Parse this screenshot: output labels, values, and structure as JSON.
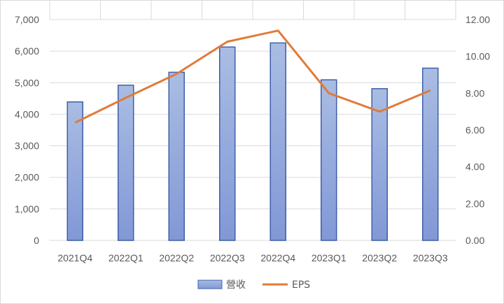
{
  "chart_data": {
    "type": "bar",
    "categories": [
      "2021Q4",
      "2022Q1",
      "2022Q2",
      "2022Q3",
      "2022Q4",
      "2023Q1",
      "2023Q2",
      "2023Q3"
    ],
    "series": [
      {
        "name": "營收",
        "type": "bar",
        "axis": "left",
        "values": [
          4390,
          4920,
          5330,
          6130,
          6260,
          5090,
          4810,
          5460
        ]
      },
      {
        "name": "EPS",
        "type": "line",
        "axis": "right",
        "values": [
          6.4,
          7.75,
          9.05,
          10.8,
          11.4,
          8.0,
          7.0,
          8.15
        ]
      }
    ],
    "y_left": {
      "min": 0,
      "max": 7000,
      "step": 1000,
      "tick_labels": [
        "0",
        "1,000",
        "2,000",
        "3,000",
        "4,000",
        "5,000",
        "6,000",
        "7,000"
      ]
    },
    "y_right": {
      "min": 0,
      "max": 12,
      "step": 2,
      "tick_labels": [
        "0.00",
        "2.00",
        "4.00",
        "6.00",
        "8.00",
        "10.00",
        "12.00"
      ]
    },
    "grid": true,
    "legend": "bottom",
    "colors": {
      "bar_fill_top": "#a9bde3",
      "bar_fill_bottom": "#8298d6",
      "bar_stroke": "#3e5fa8",
      "line": "#e07b39",
      "grid": "#d9d9d9"
    }
  }
}
